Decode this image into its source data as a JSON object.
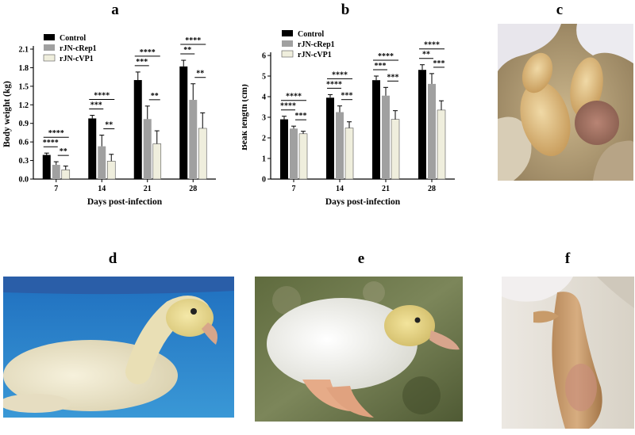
{
  "panels": {
    "a": "a",
    "b": "b",
    "c": "c",
    "d": "d",
    "e": "e",
    "f": "f"
  },
  "legend_entries": [
    "Control",
    "rJN-cRep1",
    "rJN-cVP1"
  ],
  "colors": {
    "Control": "#000000",
    "rJN-cRep1": "#a0a0a0",
    "rJN-cVP1": "#efeedd"
  },
  "chart_data": [
    {
      "type": "bar",
      "panel": "a",
      "categories": [
        "7",
        "14",
        "21",
        "28"
      ],
      "series": [
        {
          "name": "Control",
          "values": [
            0.39,
            0.98,
            1.6,
            1.82
          ],
          "errors": [
            0.03,
            0.05,
            0.13,
            0.1
          ]
        },
        {
          "name": "rJN-cRep1",
          "values": [
            0.23,
            0.53,
            0.97,
            1.28
          ],
          "errors": [
            0.05,
            0.18,
            0.21,
            0.26
          ]
        },
        {
          "name": "rJN-cVP1",
          "values": [
            0.15,
            0.29,
            0.57,
            0.82
          ],
          "errors": [
            0.06,
            0.11,
            0.21,
            0.25
          ]
        }
      ],
      "xlabel": "Days post-infection",
      "ylabel": "Body weight (kg)",
      "yticks": [
        "0.0",
        "0.3",
        "0.6",
        "0.9",
        "1.2",
        "1.5",
        "1.8",
        "2.1"
      ],
      "ylim": [
        0,
        2.1
      ],
      "legend": "top-left",
      "significance": [
        [
          "****",
          "**",
          "****"
        ],
        [
          "***",
          "**",
          "****"
        ],
        [
          "***",
          "**",
          "****"
        ],
        [
          "**",
          "**",
          "****"
        ]
      ]
    },
    {
      "type": "bar",
      "panel": "b",
      "categories": [
        "7",
        "14",
        "21",
        "28"
      ],
      "series": [
        {
          "name": "Control",
          "values": [
            2.9,
            3.95,
            4.8,
            5.3
          ],
          "errors": [
            0.15,
            0.15,
            0.2,
            0.25
          ]
        },
        {
          "name": "rJN-cRep1",
          "values": [
            2.45,
            3.25,
            4.05,
            4.62
          ],
          "errors": [
            0.12,
            0.3,
            0.4,
            0.5
          ]
        },
        {
          "name": "rJN-cVP1",
          "values": [
            2.2,
            2.48,
            2.9,
            3.35
          ],
          "errors": [
            0.12,
            0.3,
            0.42,
            0.45
          ]
        }
      ],
      "xlabel": "Days post-infection",
      "ylabel": "Beak length (cm)",
      "yticks": [
        "0",
        "1",
        "2",
        "3",
        "4",
        "5",
        "6"
      ],
      "ylim": [
        0,
        6
      ],
      "legend": "top-left",
      "significance": [
        [
          "****",
          "***",
          "****"
        ],
        [
          "****",
          "***",
          "****"
        ],
        [
          "***",
          "***",
          "****"
        ],
        [
          "**",
          "***",
          "****"
        ]
      ]
    }
  ]
}
